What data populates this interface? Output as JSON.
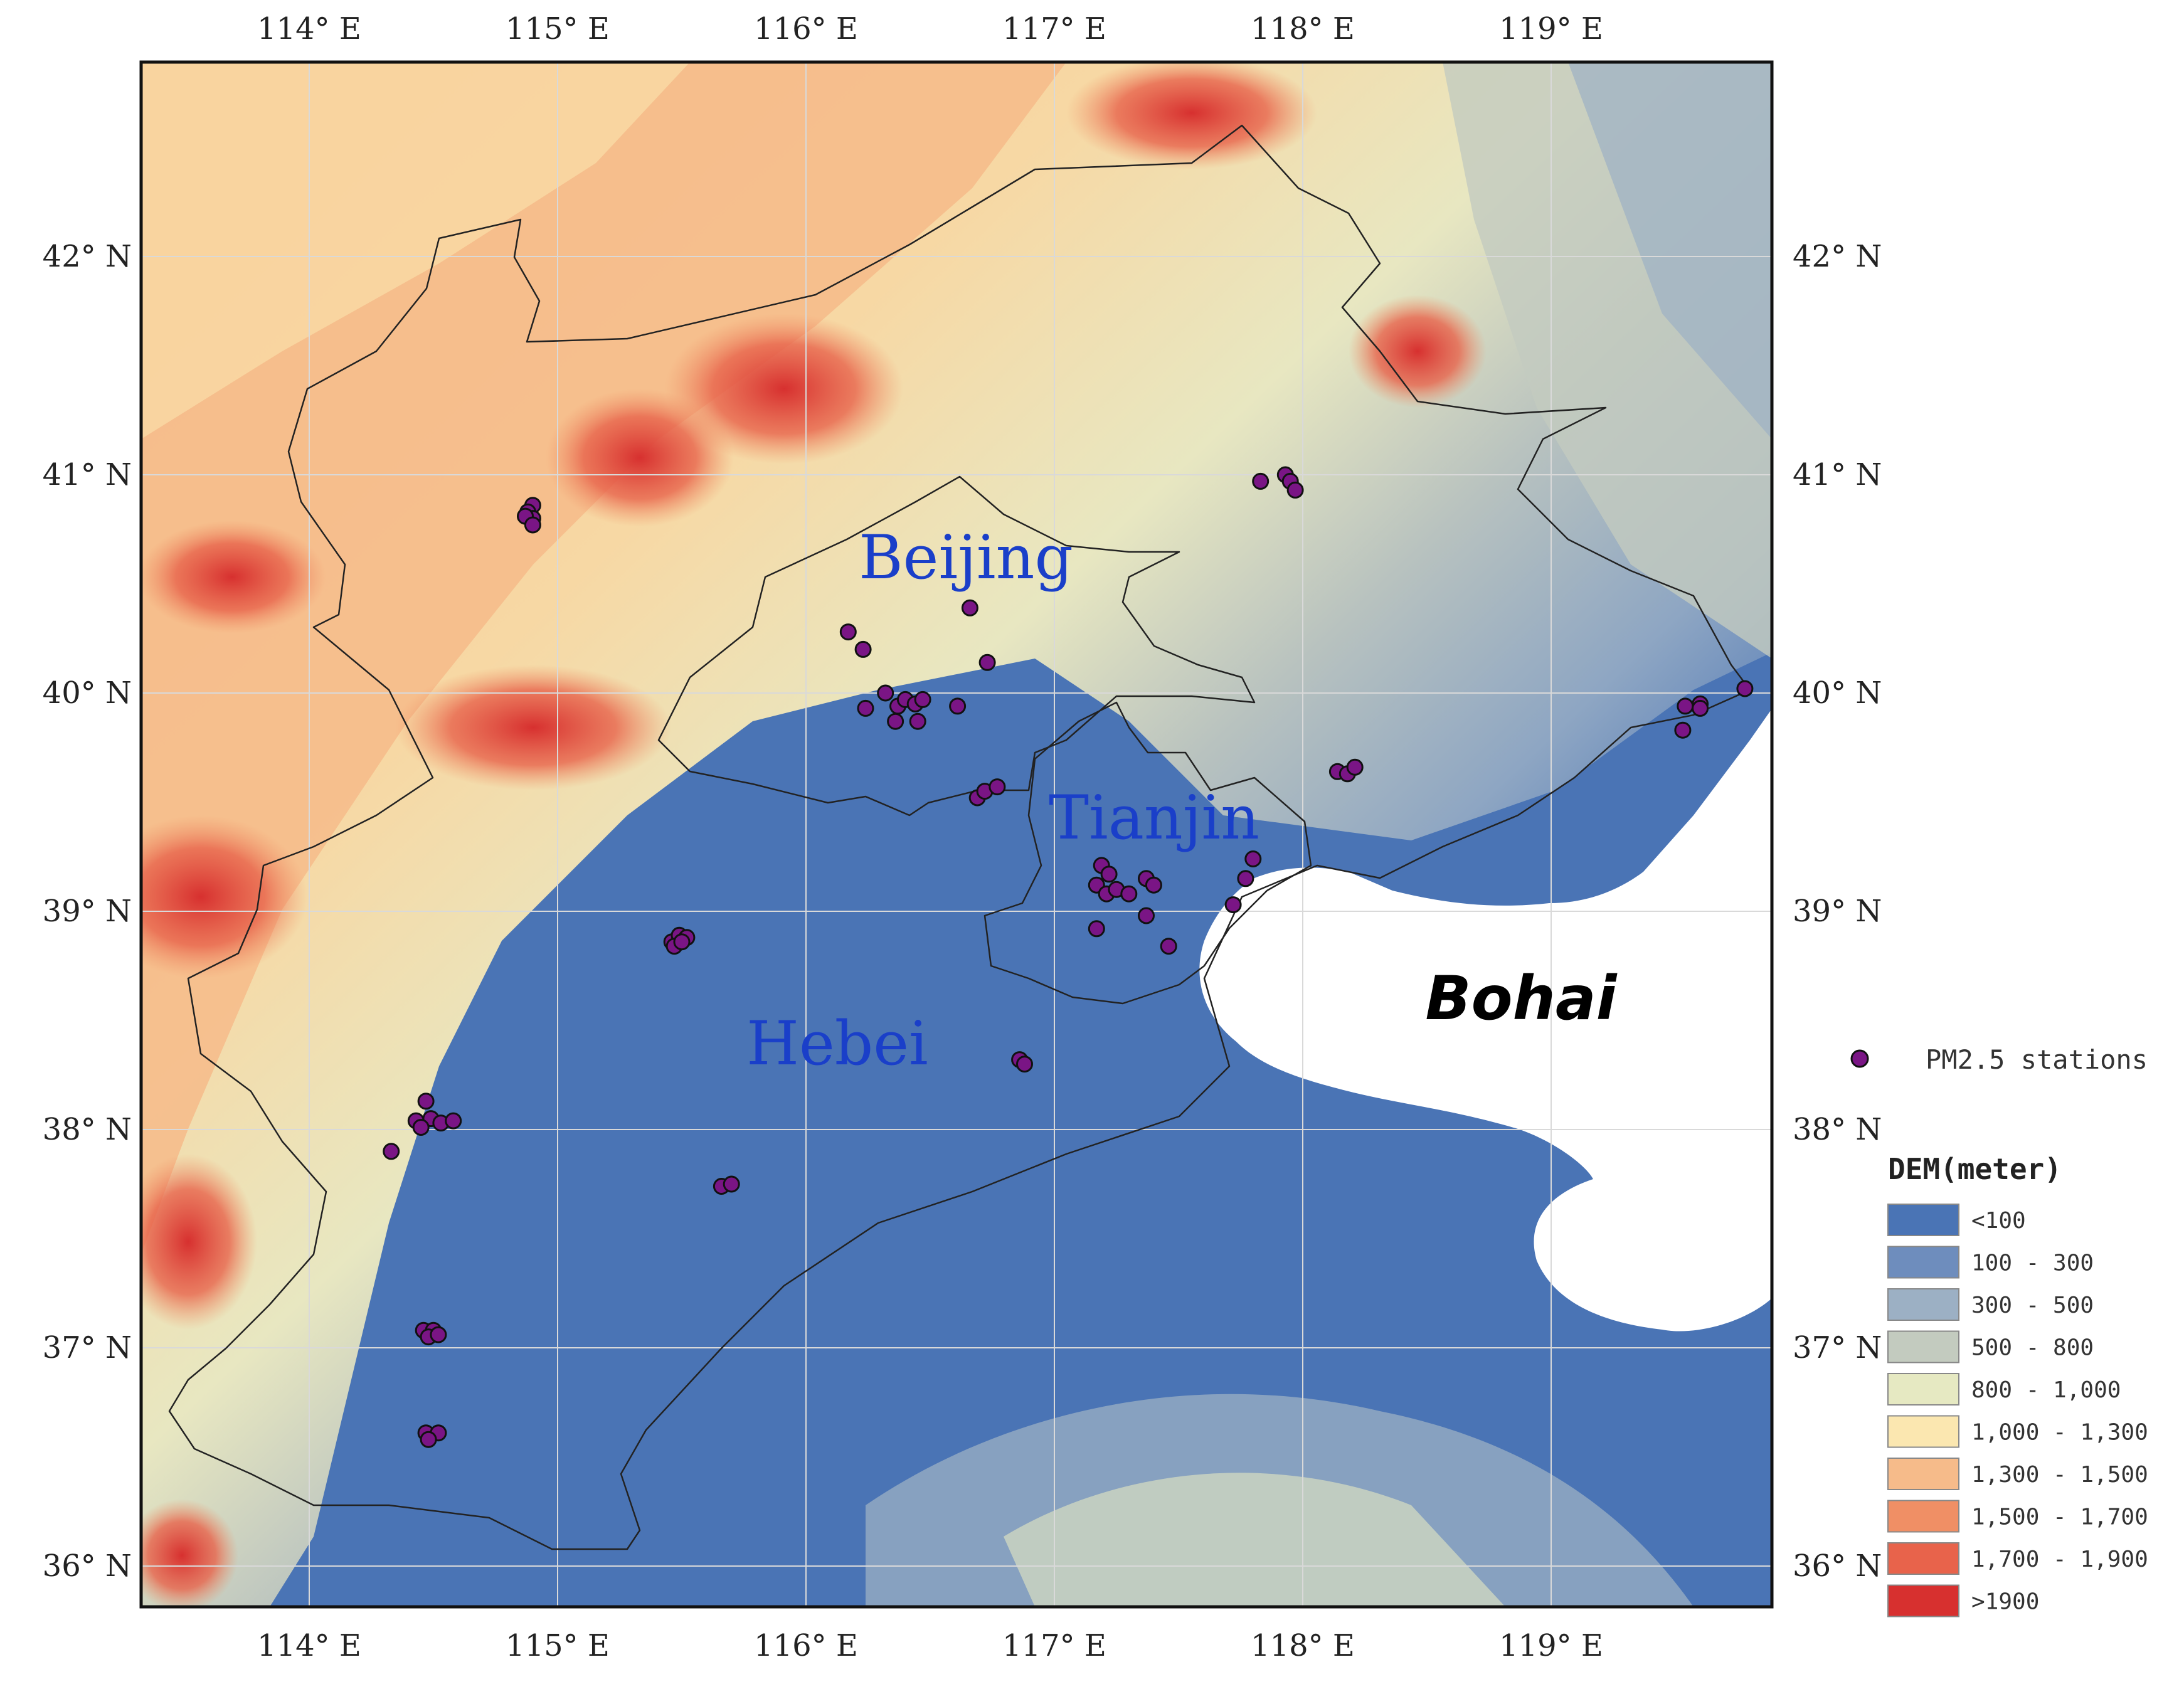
{
  "map": {
    "lon_ticks": [
      "114° E",
      "115° E",
      "116° E",
      "117° E",
      "118° E",
      "119° E"
    ],
    "lat_ticks": [
      "42° N",
      "41° N",
      "40° N",
      "39° N",
      "38° N",
      "37° N",
      "36° N"
    ],
    "region_labels": {
      "beijing": "Beijing",
      "tianjin": "Tianjin",
      "hebei": "Hebei",
      "bohai": "Bohai"
    },
    "colors": {
      "region_label": "#1a3fc9",
      "station_fill": "#7a1585",
      "sea": "#ffffff",
      "boundary": "#222222"
    },
    "stations_legend_label": "PM2.5 stations",
    "dem_legend": {
      "title": "DEM(meter)",
      "classes": [
        {
          "label": "<100",
          "color": "#4a74b5"
        },
        {
          "label": "100 - 300",
          "color": "#6e8dbd"
        },
        {
          "label": "300 - 500",
          "color": "#9cb0c4"
        },
        {
          "label": "500 - 800",
          "color": "#c3cbbf"
        },
        {
          "label": "800 - 1,000",
          "color": "#e6e9c2"
        },
        {
          "label": "1,000 - 1,300",
          "color": "#fbe7b0"
        },
        {
          "label": "1,300 - 1,500",
          "color": "#f6bb8a"
        },
        {
          "label": "1,500 - 1,700",
          "color": "#f08f65"
        },
        {
          "label": "1,700 - 1,900",
          "color": "#e8634b"
        },
        {
          "label": ">1900",
          "color": "#d7302f"
        }
      ]
    },
    "stations": [
      {
        "lon": 114.9,
        "lat": 40.86
      },
      {
        "lon": 114.88,
        "lat": 40.83
      },
      {
        "lon": 114.9,
        "lat": 40.8
      },
      {
        "lon": 114.87,
        "lat": 40.81
      },
      {
        "lon": 114.9,
        "lat": 40.77
      },
      {
        "lon": 116.17,
        "lat": 40.28
      },
      {
        "lon": 116.23,
        "lat": 40.2
      },
      {
        "lon": 116.66,
        "lat": 40.39
      },
      {
        "lon": 116.73,
        "lat": 40.14
      },
      {
        "lon": 116.24,
        "lat": 39.93
      },
      {
        "lon": 116.32,
        "lat": 40.0
      },
      {
        "lon": 116.37,
        "lat": 39.94
      },
      {
        "lon": 116.4,
        "lat": 39.97
      },
      {
        "lon": 116.44,
        "lat": 39.95
      },
      {
        "lon": 116.47,
        "lat": 39.97
      },
      {
        "lon": 116.36,
        "lat": 39.87
      },
      {
        "lon": 116.45,
        "lat": 39.87
      },
      {
        "lon": 116.61,
        "lat": 39.94
      },
      {
        "lon": 116.69,
        "lat": 39.52
      },
      {
        "lon": 116.72,
        "lat": 39.55
      },
      {
        "lon": 116.77,
        "lat": 39.57
      },
      {
        "lon": 117.19,
        "lat": 39.21
      },
      {
        "lon": 117.22,
        "lat": 39.17
      },
      {
        "lon": 117.17,
        "lat": 39.12
      },
      {
        "lon": 117.21,
        "lat": 39.08
      },
      {
        "lon": 117.25,
        "lat": 39.1
      },
      {
        "lon": 117.3,
        "lat": 39.08
      },
      {
        "lon": 117.37,
        "lat": 39.15
      },
      {
        "lon": 117.4,
        "lat": 39.12
      },
      {
        "lon": 117.17,
        "lat": 38.92
      },
      {
        "lon": 117.37,
        "lat": 38.98
      },
      {
        "lon": 117.46,
        "lat": 38.84
      },
      {
        "lon": 117.72,
        "lat": 39.03
      },
      {
        "lon": 117.77,
        "lat": 39.15
      },
      {
        "lon": 117.8,
        "lat": 39.24
      },
      {
        "lon": 117.83,
        "lat": 40.97
      },
      {
        "lon": 117.93,
        "lat": 41.0
      },
      {
        "lon": 117.95,
        "lat": 40.97
      },
      {
        "lon": 117.97,
        "lat": 40.93
      },
      {
        "lon": 118.14,
        "lat": 39.64
      },
      {
        "lon": 118.18,
        "lat": 39.63
      },
      {
        "lon": 118.21,
        "lat": 39.66
      },
      {
        "lon": 119.54,
        "lat": 39.94
      },
      {
        "lon": 119.6,
        "lat": 39.95
      },
      {
        "lon": 119.6,
        "lat": 39.93
      },
      {
        "lon": 119.53,
        "lat": 39.83
      },
      {
        "lon": 119.78,
        "lat": 40.02
      },
      {
        "lon": 115.46,
        "lat": 38.86
      },
      {
        "lon": 115.49,
        "lat": 38.89
      },
      {
        "lon": 115.52,
        "lat": 38.88
      },
      {
        "lon": 115.47,
        "lat": 38.84
      },
      {
        "lon": 115.5,
        "lat": 38.86
      },
      {
        "lon": 116.86,
        "lat": 38.32
      },
      {
        "lon": 116.88,
        "lat": 38.3
      },
      {
        "lon": 114.47,
        "lat": 38.13
      },
      {
        "lon": 114.43,
        "lat": 38.04
      },
      {
        "lon": 114.49,
        "lat": 38.05
      },
      {
        "lon": 114.53,
        "lat": 38.03
      },
      {
        "lon": 114.58,
        "lat": 38.04
      },
      {
        "lon": 114.45,
        "lat": 38.01
      },
      {
        "lon": 114.33,
        "lat": 37.9
      },
      {
        "lon": 115.66,
        "lat": 37.74
      },
      {
        "lon": 115.7,
        "lat": 37.75
      },
      {
        "lon": 114.46,
        "lat": 37.08
      },
      {
        "lon": 114.5,
        "lat": 37.08
      },
      {
        "lon": 114.48,
        "lat": 37.05
      },
      {
        "lon": 114.52,
        "lat": 37.06
      },
      {
        "lon": 114.47,
        "lat": 36.61
      },
      {
        "lon": 114.52,
        "lat": 36.61
      },
      {
        "lon": 114.48,
        "lat": 36.58
      }
    ]
  }
}
